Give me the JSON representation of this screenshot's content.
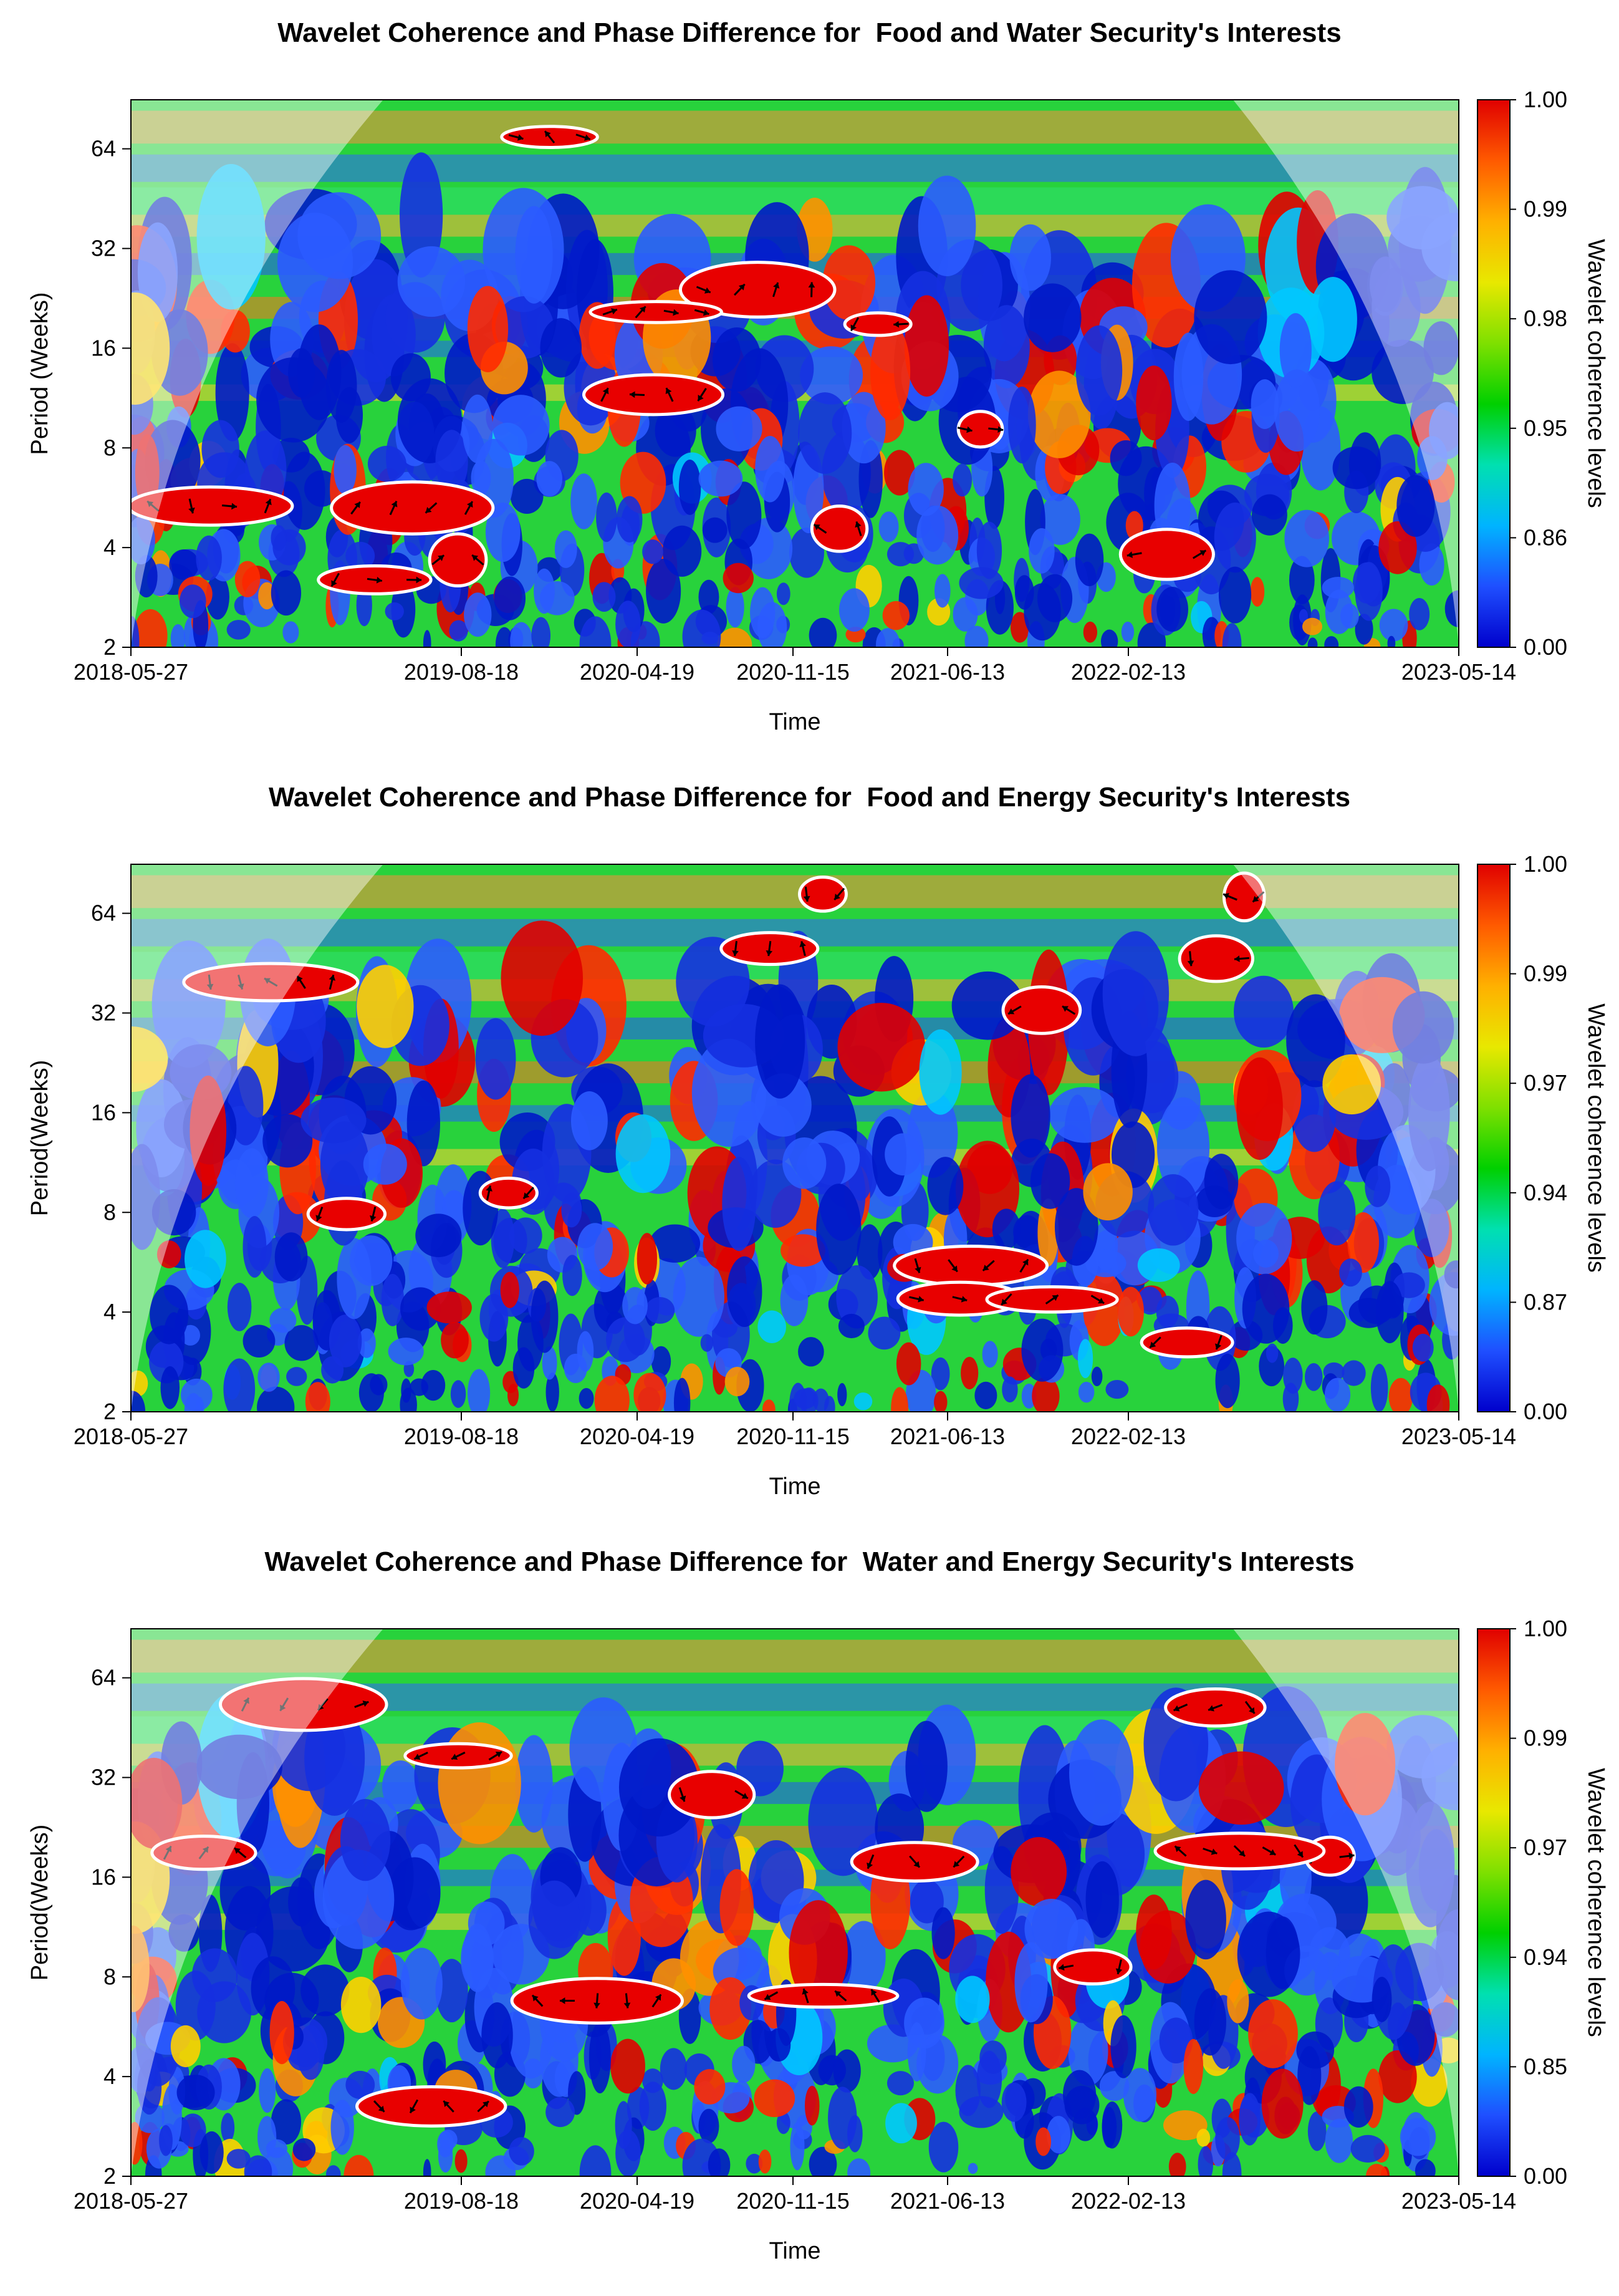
{
  "colors": {
    "cone_outside_tint": "#ffffff",
    "significance_contour": "#ffffff",
    "arrow": "#000000",
    "colorbar": [
      "#0000cc",
      "#1f4fff",
      "#00b4ff",
      "#00e0b0",
      "#00d000",
      "#7fe000",
      "#e8e800",
      "#ffb000",
      "#ff5a00",
      "#e00000"
    ]
  },
  "chart_data": [
    {
      "type": "heatmap",
      "title": "Wavelet Coherence and Phase Difference for  Food and Water Security's Interests",
      "xlabel": "Time",
      "ylabel": "Period (Weeks)",
      "x_tick_labels": [
        "2018-05-27",
        "2019-08-18",
        "2020-04-19",
        "2020-11-15",
        "2021-06-13",
        "2022-02-13",
        "2023-05-14"
      ],
      "y_scale": "log2",
      "y_ticks": [
        2,
        4,
        8,
        16,
        32,
        64
      ],
      "colorbar_label": "Wavelet coherence levels",
      "colorbar_ticks": [
        "0.00",
        "0.86",
        "0.95",
        "0.98",
        "0.99",
        "1.00"
      ]
    },
    {
      "type": "heatmap",
      "title": "Wavelet Coherence and Phase Difference for  Food and Energy Security's Interests",
      "xlabel": "Time",
      "ylabel": "Period(Weeks)",
      "x_tick_labels": [
        "2018-05-27",
        "2019-08-18",
        "2020-04-19",
        "2020-11-15",
        "2021-06-13",
        "2022-02-13",
        "2023-05-14"
      ],
      "y_scale": "log2",
      "y_ticks": [
        2,
        4,
        8,
        16,
        32,
        64
      ],
      "colorbar_label": "Wavelet coherence levels",
      "colorbar_ticks": [
        "0.00",
        "0.87",
        "0.94",
        "0.97",
        "0.99",
        "1.00"
      ]
    },
    {
      "type": "heatmap",
      "title": "Wavelet Coherence and Phase Difference for  Water and Energy Security's Interests",
      "xlabel": "Time",
      "ylabel": "Period(Weeks)",
      "x_tick_labels": [
        "2018-05-27",
        "2019-08-18",
        "2020-04-19",
        "2020-11-15",
        "2021-06-13",
        "2022-02-13",
        "2023-05-14"
      ],
      "y_scale": "log2",
      "y_ticks": [
        2,
        4,
        8,
        16,
        32,
        64
      ],
      "colorbar_label": "Wavelet coherence levels",
      "colorbar_ticks": [
        "0.00",
        "0.85",
        "0.94",
        "0.97",
        "0.99",
        "1.00"
      ]
    }
  ]
}
